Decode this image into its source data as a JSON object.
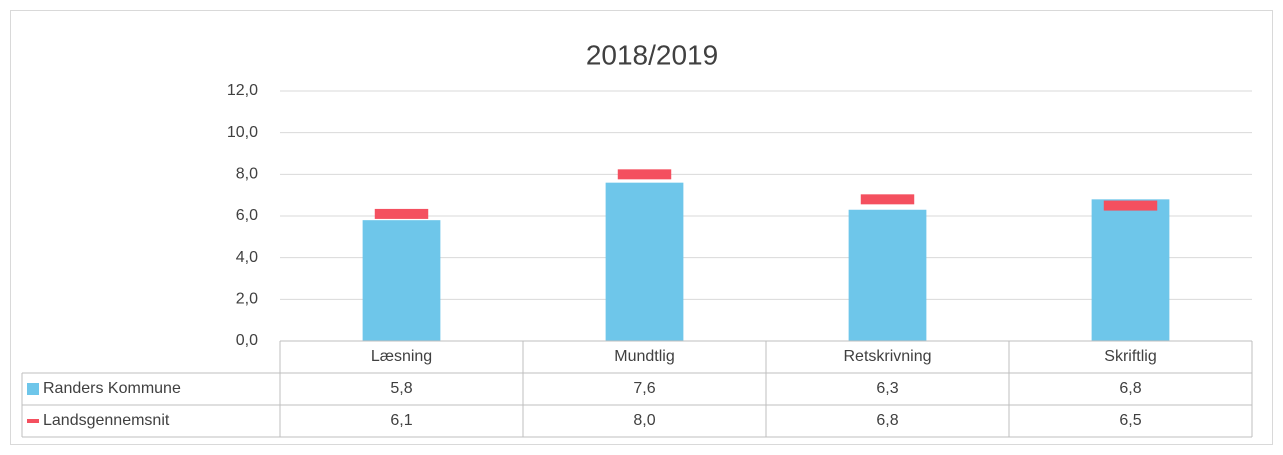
{
  "chart_data": {
    "type": "bar",
    "title": "2018/2019",
    "categories": [
      "Læsning",
      "Mundtlig",
      "Retskrivning",
      "Skriftlig"
    ],
    "series": [
      {
        "name": "Randers Kommune",
        "color": "#6ec6ea",
        "style": "bar",
        "values": [
          5.8,
          7.6,
          6.3,
          6.8
        ],
        "value_labels": [
          "5,8",
          "7,6",
          "6,3",
          "6,8"
        ]
      },
      {
        "name": "Landsgennemsnit",
        "color": "#f4505f",
        "style": "dash",
        "values": [
          6.1,
          8.0,
          6.8,
          6.5
        ],
        "value_labels": [
          "6,1",
          "8,0",
          "6,8",
          "6,5"
        ]
      }
    ],
    "ylim": [
      0,
      12
    ],
    "yticks": [
      {
        "value": 0,
        "label": "0,0"
      },
      {
        "value": 2,
        "label": "2,0"
      },
      {
        "value": 4,
        "label": "4,0"
      },
      {
        "value": 6,
        "label": "6,0"
      },
      {
        "value": 8,
        "label": "8,0"
      },
      {
        "value": 10,
        "label": "10,0"
      },
      {
        "value": 12,
        "label": "12,0"
      }
    ],
    "grid": true,
    "data_table": true
  }
}
